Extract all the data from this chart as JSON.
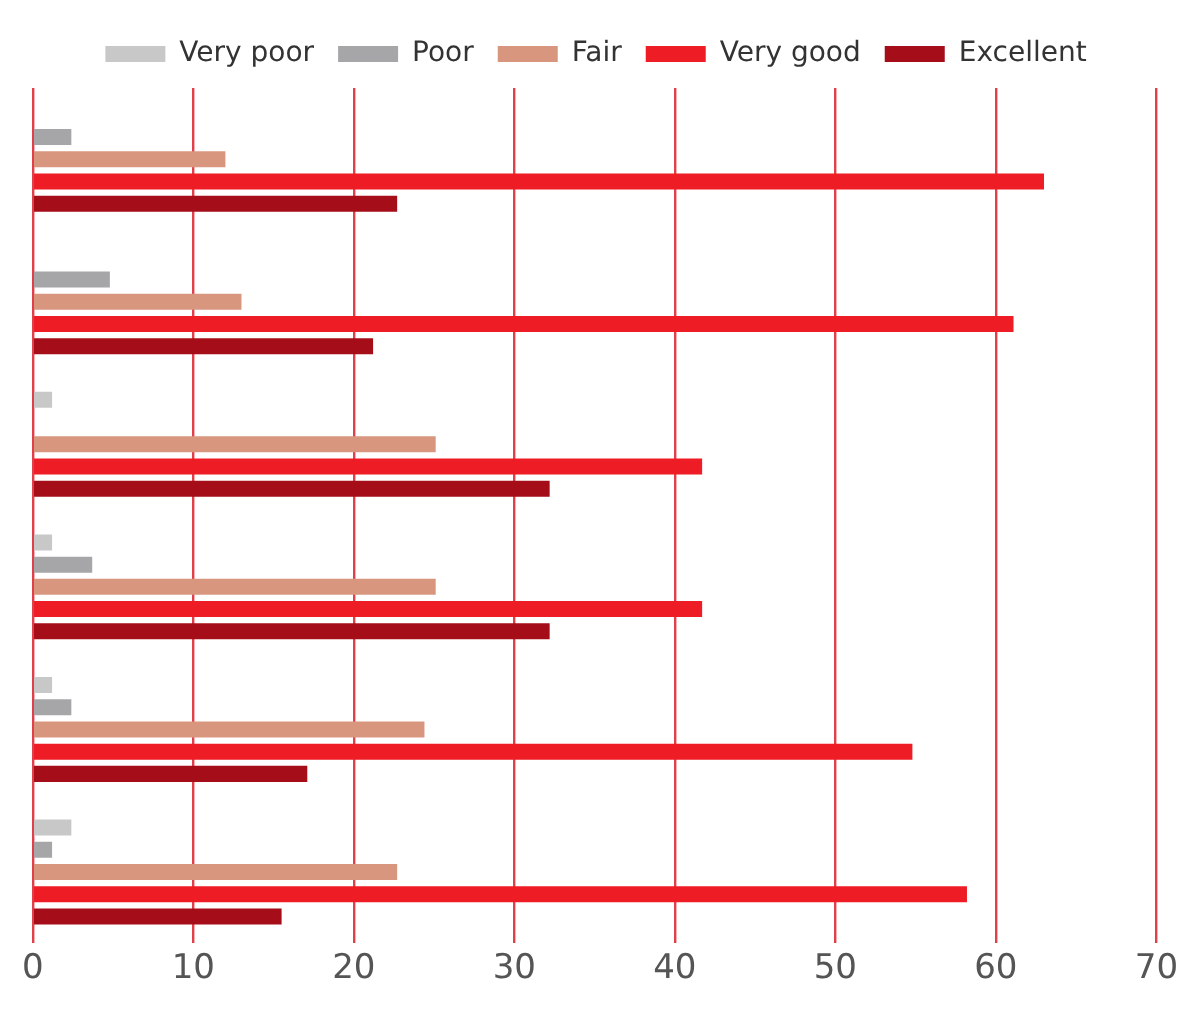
{
  "chart_data": {
    "type": "bar",
    "orientation": "horizontal",
    "categories": [
      null,
      null,
      null,
      null,
      null,
      null
    ],
    "series": [
      {
        "name": "Very poor",
        "color": "#c8c8c8",
        "values": [
          null,
          null,
          1.2,
          1.2,
          1.2,
          2.4
        ]
      },
      {
        "name": "Poor",
        "color": "#a6a6a9",
        "values": [
          2.4,
          4.8,
          null,
          3.7,
          2.4,
          1.2
        ]
      },
      {
        "name": "Fair",
        "color": "#d9967e",
        "values": [
          12,
          13,
          25.1,
          25.1,
          24.4,
          22.7
        ]
      },
      {
        "name": "Very good",
        "color": "#ee1c25",
        "values": [
          63,
          61.1,
          41.7,
          41.7,
          54.8,
          58.2
        ]
      },
      {
        "name": "Excellent",
        "color": "#a50d18",
        "values": [
          22.7,
          21.2,
          32.2,
          32.2,
          17.1,
          15.5
        ]
      }
    ],
    "xlim": [
      0,
      70
    ],
    "xticks": [
      0,
      10,
      20,
      30,
      40,
      50,
      60,
      70
    ],
    "grid": "x",
    "legend": "top",
    "tick_labels": "x"
  }
}
